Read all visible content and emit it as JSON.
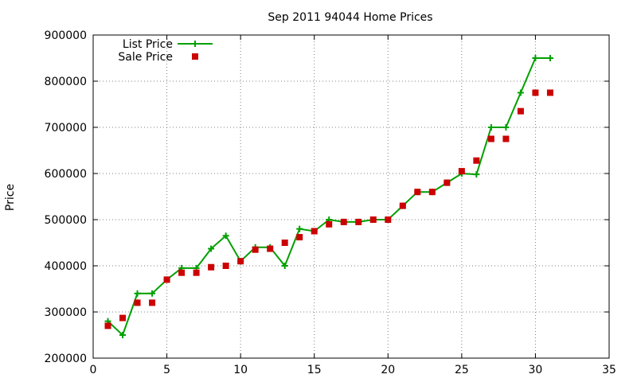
{
  "chart_data": {
    "type": "line",
    "title": "Sep 2011 94044 Home Prices",
    "xlabel": "",
    "ylabel": "Price",
    "xlim": [
      0,
      35
    ],
    "ylim": [
      200000,
      900000
    ],
    "xticks": [
      "0",
      "5",
      "10",
      "15",
      "20",
      "25",
      "30",
      "35"
    ],
    "yticks": [
      "200000",
      "300000",
      "400000",
      "500000",
      "600000",
      "700000",
      "800000",
      "900000"
    ],
    "grid": true,
    "legend_position": "top-left",
    "series": [
      {
        "name": "List Price",
        "style": "line-with-plus-markers",
        "color": "#00a000",
        "x": [
          1,
          2,
          3,
          4,
          5,
          6,
          7,
          8,
          9,
          10,
          11,
          12,
          13,
          14,
          15,
          16,
          17,
          18,
          19,
          20,
          21,
          22,
          23,
          24,
          25,
          26,
          27,
          28,
          29,
          30,
          31
        ],
        "y": [
          280000,
          250000,
          340000,
          340000,
          370000,
          395000,
          395000,
          437000,
          465000,
          410000,
          440000,
          440000,
          400000,
          480000,
          475000,
          500000,
          495000,
          495000,
          500000,
          500000,
          530000,
          560000,
          560000,
          580000,
          600000,
          598000,
          700000,
          700000,
          775000,
          850000,
          850000
        ]
      },
      {
        "name": "Sale Price",
        "style": "square-markers",
        "color": "#cc0000",
        "x": [
          1,
          2,
          3,
          4,
          5,
          6,
          7,
          8,
          9,
          10,
          11,
          12,
          13,
          14,
          15,
          16,
          17,
          18,
          19,
          20,
          21,
          22,
          23,
          24,
          25,
          26,
          27,
          28,
          29,
          30,
          31
        ],
        "y": [
          270000,
          287000,
          320000,
          320000,
          370000,
          385000,
          385000,
          397000,
          400000,
          410000,
          435000,
          437000,
          450000,
          462000,
          475000,
          490000,
          495000,
          495000,
          500000,
          500000,
          530000,
          560000,
          560000,
          580000,
          605000,
          628000,
          675000,
          675000,
          735000,
          775000,
          775000
        ]
      }
    ]
  }
}
